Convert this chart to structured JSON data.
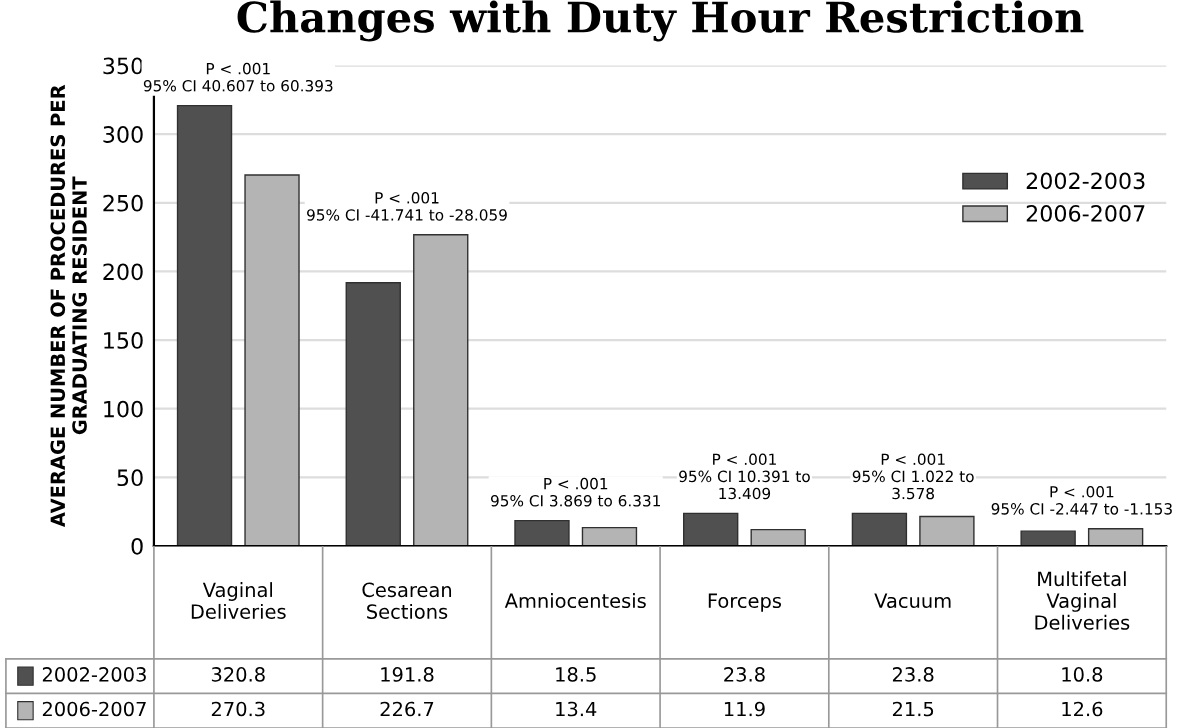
{
  "chart_data": {
    "type": "bar",
    "title": "Changes with Duty Hour Restriction",
    "ylabel": "AVERAGE NUMBER OF PROCEDURES PER\nGRADUATING RESIDENT",
    "categories": [
      "Vaginal\nDeliveries",
      "Cesarean\nSections",
      "Amniocentesis",
      "Forceps",
      "Vacuum",
      "Multifetal\nVaginal\nDeliveries"
    ],
    "series": [
      {
        "name": "2002-2003",
        "color": "#505050",
        "values": [
          320.8,
          191.8,
          18.5,
          23.8,
          23.8,
          10.8
        ]
      },
      {
        "name": "2006-2007",
        "color": "#b4b4b4",
        "values": [
          270.3,
          226.7,
          13.4,
          11.9,
          21.5,
          12.6
        ]
      }
    ],
    "ylim": [
      0,
      350
    ],
    "yticks": [
      0,
      50,
      100,
      150,
      200,
      250,
      300,
      350
    ],
    "grid": "y",
    "legend": "upper right",
    "data_labels": true,
    "annotations": [
      "P < .001\n95% CI 40.607 to 60.393",
      "P < .001\n95% CI -41.741 to -28.059",
      "P < .001\n95% CI 3.869 to 6.331",
      "P < .001\n95% CI 10.391 to\n13.409",
      "P < .001\n95% CI 1.022 to\n3.578",
      "P < .001\n95% CI -2.447 to -1.153"
    ]
  }
}
